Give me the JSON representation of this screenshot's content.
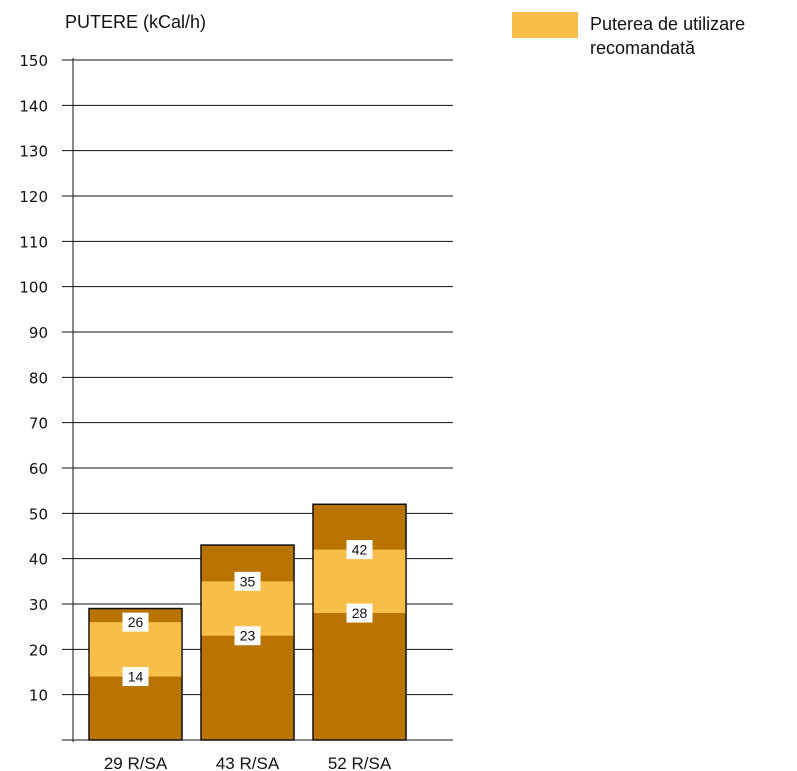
{
  "chart_data": {
    "type": "bar",
    "title": "",
    "ylabel": "PUTERE (kCal/h)",
    "xlabel": "",
    "ylim": [
      0,
      150
    ],
    "yticks": [
      10,
      20,
      30,
      40,
      50,
      60,
      70,
      80,
      90,
      100,
      110,
      120,
      130,
      140,
      150
    ],
    "grid": true,
    "categories": [
      "29 R/SA",
      "43 R/SA",
      "52 R/SA"
    ],
    "series": [
      {
        "values": [
          29,
          43,
          52
        ]
      },
      {
        "name": "Puterea de utilizare recomandată",
        "range_low": [
          14,
          23,
          28
        ],
        "range_high": [
          26,
          35,
          42
        ]
      }
    ],
    "legend": {
      "label": "Puterea de utilizare recomandată",
      "placement": "top-right"
    },
    "colors": {
      "total": "#B87300",
      "recommended": "#F9BE4A",
      "axis": "#111111",
      "label_box": "#ffffff"
    }
  }
}
